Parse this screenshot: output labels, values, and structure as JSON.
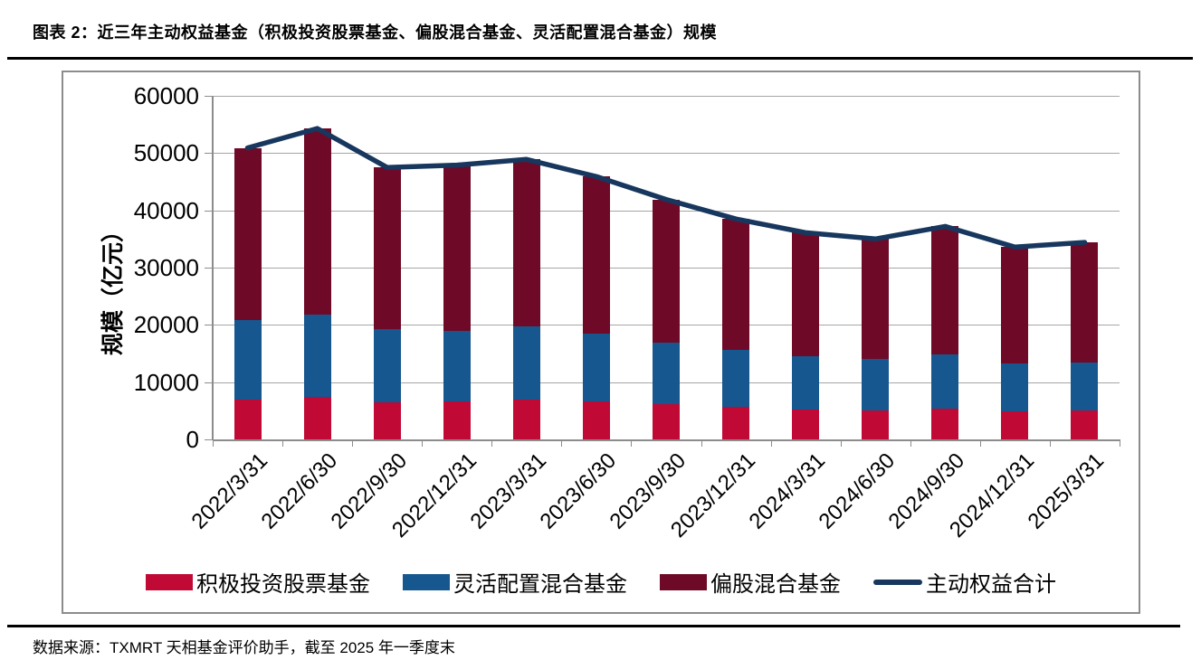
{
  "page": {
    "title": "图表 2：近三年主动权益基金（积极投资股票基金、偏股混合基金、灵活配置混合基金）规模",
    "source_note": "数据来源：TXMRT 天相基金评价助手，截至 2025 年一季度末"
  },
  "colors": {
    "active_stock_red": "#C00A35",
    "flexible_blue": "#15578E",
    "partial_equity_maroon": "#6E0A28",
    "total_line_navy": "#17375E",
    "gridline_gray": "#A6A6A6",
    "axis_gray": "#8C8C8C"
  },
  "chart_data": {
    "type": "bar",
    "subtype": "stacked-bars-with-total-line",
    "title": "图表 2：近三年主动权益基金（积极投资股票基金、偏股混合基金、灵活配置混合基金）规模",
    "xlabel": "",
    "ylabel": "规模（亿元）",
    "ylim": [
      0,
      60000
    ],
    "ytick_step": 10000,
    "yticks": [
      "0",
      "10000",
      "20000",
      "30000",
      "40000",
      "50000",
      "60000"
    ],
    "grid": true,
    "legend_position": "bottom",
    "categories": [
      "2022/3/31",
      "2022/6/30",
      "2022/9/30",
      "2022/12/31",
      "2023/3/31",
      "2023/6/30",
      "2023/9/30",
      "2023/12/31",
      "2024/3/31",
      "2024/6/30",
      "2024/9/30",
      "2024/12/31",
      "2025/3/31"
    ],
    "series": [
      {
        "name": "积极投资股票基金",
        "type": "bar",
        "color": "#C00A35",
        "values": [
          6900,
          7400,
          6500,
          6600,
          6900,
          6600,
          6200,
          5700,
          5200,
          5000,
          5300,
          4900,
          5100
        ]
      },
      {
        "name": "灵活配置混合基金",
        "type": "bar",
        "color": "#15578E",
        "values": [
          14000,
          14400,
          12700,
          12400,
          12800,
          11900,
          10700,
          10000,
          9400,
          9100,
          9500,
          8400,
          8300
        ]
      },
      {
        "name": "偏股混合基金",
        "type": "bar",
        "color": "#6E0A28",
        "values": [
          30000,
          32500,
          28300,
          28900,
          29200,
          27400,
          25000,
          22800,
          21500,
          20900,
          22400,
          20300,
          21000
        ]
      },
      {
        "name": "主动权益合计",
        "type": "line",
        "color": "#17375E",
        "values": [
          50900,
          54300,
          47500,
          47900,
          48900,
          45900,
          41900,
          38500,
          36100,
          35000,
          37200,
          33600,
          34400
        ]
      }
    ]
  }
}
